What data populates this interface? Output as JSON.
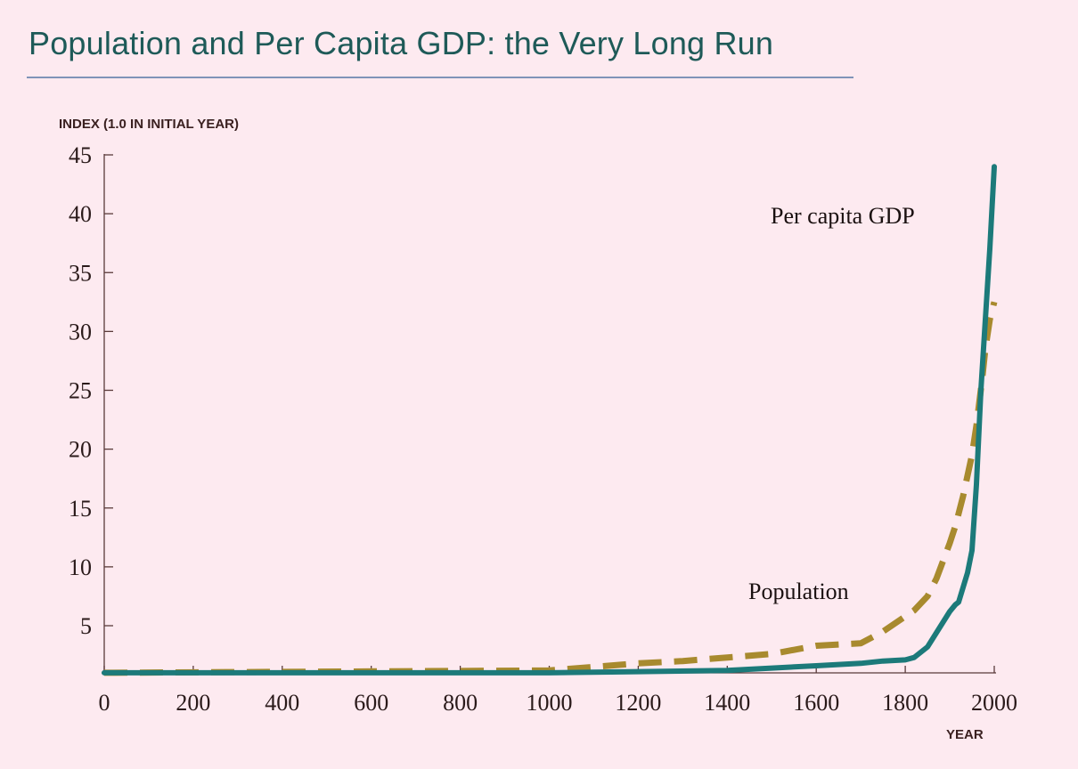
{
  "chart_data": {
    "type": "line",
    "title": "Population and Per Capita GDP: the Very Long Run",
    "ylabel": "INDEX (1.0 IN INITIAL YEAR)",
    "xlabel": "YEAR",
    "xlim": [
      0,
      2000
    ],
    "ylim": [
      0,
      45
    ],
    "x_ticks": [
      0,
      200,
      400,
      600,
      800,
      1000,
      1200,
      1400,
      1600,
      1800,
      2000
    ],
    "y_ticks": [
      5,
      10,
      15,
      20,
      25,
      30,
      35,
      40,
      45
    ],
    "grid": false,
    "colors": {
      "gdp": "#1C7A7A",
      "population": "#A88A2E",
      "axis": "#5A3A3A"
    },
    "series": [
      {
        "name": "Per capita GDP",
        "style": "solid",
        "x": [
          0,
          1000,
          1200,
          1400,
          1500,
          1600,
          1700,
          1750,
          1800,
          1820,
          1850,
          1870,
          1900,
          1913,
          1920,
          1940,
          1950,
          1960,
          1970,
          1980,
          1990,
          2000
        ],
        "y": [
          1.0,
          1.0,
          1.1,
          1.2,
          1.4,
          1.6,
          1.8,
          2.0,
          2.1,
          2.3,
          3.2,
          4.4,
          6.2,
          6.8,
          7.0,
          9.5,
          11.4,
          17.0,
          25.0,
          31.0,
          37.0,
          44.0
        ]
      },
      {
        "name": "Population",
        "style": "dashed",
        "x": [
          0,
          1000,
          1100,
          1200,
          1300,
          1400,
          1500,
          1600,
          1700,
          1750,
          1820,
          1850,
          1870,
          1900,
          1913,
          1930,
          1950,
          1960,
          1973,
          1980,
          1990,
          2000
        ],
        "y": [
          1.0,
          1.2,
          1.5,
          1.8,
          2.0,
          2.3,
          2.6,
          3.3,
          3.5,
          4.5,
          6.3,
          7.5,
          9.0,
          12.0,
          13.5,
          16.0,
          19.5,
          22.0,
          26.0,
          28.5,
          31.0,
          32.5
        ]
      }
    ]
  }
}
